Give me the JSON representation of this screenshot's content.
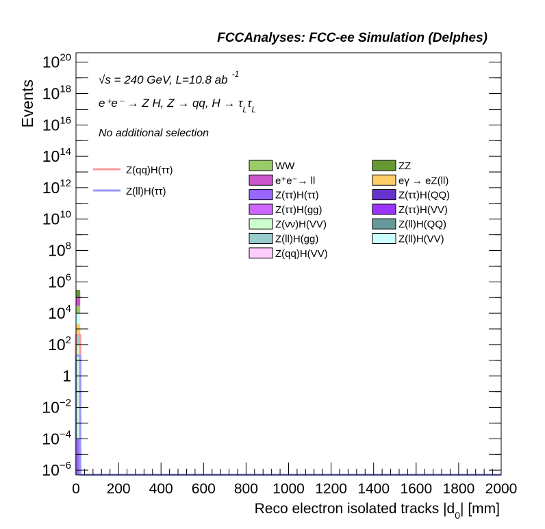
{
  "chart_data": {
    "type": "bar",
    "stacked": true,
    "title": "FCCAnalyses: FCC-ee Simulation (Delphes)",
    "xlabel": "Reco electron isolated tracks |d",
    "xlabel_sub": "0",
    "xlabel_suffix": "| [mm]",
    "ylabel": "Events",
    "xlim": [
      0,
      2000
    ],
    "ylim_log10": [
      -6.3,
      20.6
    ],
    "log_y": true,
    "grid": false,
    "legend_placement": "top-right",
    "x_tick_labels": [
      "0",
      "200",
      "400",
      "600",
      "800",
      "1000",
      "1200",
      "1400",
      "1600",
      "1800",
      "2000"
    ],
    "y_tick_labels": [
      {
        "base": "10",
        "exp": "20"
      },
      {
        "base": "10",
        "exp": "18"
      },
      {
        "base": "10",
        "exp": "16"
      },
      {
        "base": "10",
        "exp": "14"
      },
      {
        "base": "10",
        "exp": "12"
      },
      {
        "base": "10",
        "exp": "10"
      },
      {
        "base": "10",
        "exp": "8"
      },
      {
        "base": "10",
        "exp": "6"
      },
      {
        "base": "10",
        "exp": "4"
      },
      {
        "base": "10",
        "exp": "2"
      },
      {
        "base": "1",
        "exp": ""
      },
      {
        "base": "10",
        "exp": "−2"
      },
      {
        "base": "10",
        "exp": "−4"
      },
      {
        "base": "10",
        "exp": "−6"
      }
    ],
    "annotations": {
      "energy_line": "√s = 240 GeV, L=10.8 ab",
      "energy_exp": "-1",
      "process_line": "e⁺e⁻ → Z H, Z → qq, H → τ",
      "process_sub1": "L",
      "process_tau2": "τ",
      "process_sub2": "L",
      "selection": "No additional selection"
    },
    "signal_series": [
      {
        "name": "Z(qq)H(ττ)",
        "color": "#ff9999",
        "bin_x": [
          0,
          20
        ],
        "value": 400
      },
      {
        "name": "Z(ll)H(ττ)",
        "color": "#9999ff",
        "bin_x": [
          0,
          20
        ],
        "value": 20
      }
    ],
    "background_series": [
      {
        "name": "WW",
        "color": "#99cc66"
      },
      {
        "name": "ZZ",
        "color": "#669933"
      },
      {
        "name": "e⁺e⁻→ ll",
        "color": "#cc55cc"
      },
      {
        "name": "eγ → eZ(ll)",
        "color": "#ffcc66"
      },
      {
        "name": "Z(ττ)H(ττ)",
        "color": "#9966ff"
      },
      {
        "name": "Z(ττ)H(QQ)",
        "color": "#6633cc"
      },
      {
        "name": "Z(ττ)H(gg)",
        "color": "#cc66ff"
      },
      {
        "name": "Z(ττ)H(VV)",
        "color": "#9933ff"
      },
      {
        "name": "Z(νν)H(VV)",
        "color": "#ccffcc"
      },
      {
        "name": "Z(ll)H(QQ)",
        "color": "#669999"
      },
      {
        "name": "Z(ll)H(gg)",
        "color": "#99cccc"
      },
      {
        "name": "Z(ll)H(VV)",
        "color": "#ccffff"
      },
      {
        "name": "Z(qq)H(VV)",
        "color": "#ffccff"
      }
    ],
    "stack_first_bin": {
      "x_range": [
        0,
        20
      ],
      "layers_bottom_to_top": [
        {
          "name": "Z(ττ)H(ττ)",
          "color": "#9966ff",
          "value": 0.0001
        },
        {
          "name": "Z(νν)H(VV)",
          "color": "#ccffcc",
          "value": 100
        },
        {
          "name": "Z(ll)H(gg)",
          "color": "#99cccc",
          "value": 400
        },
        {
          "name": "eγ → eZ(ll)",
          "color": "#ffcc66",
          "value": 1500
        },
        {
          "name": "Z(ll)H(VV)",
          "color": "#ccffff",
          "value": 8000
        },
        {
          "name": "WW",
          "color": "#99cc66",
          "value": 20000
        },
        {
          "name": "e⁺e⁻→ ll",
          "color": "#cc55cc",
          "value": 80000
        },
        {
          "name": "ZZ",
          "color": "#669933",
          "value": 200000
        }
      ]
    }
  }
}
